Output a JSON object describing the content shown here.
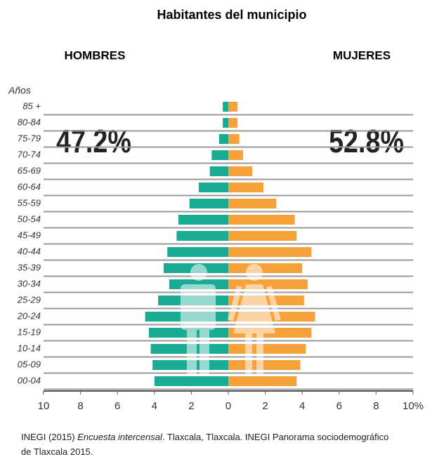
{
  "chart_data": {
    "type": "pyramid",
    "title": "Habitantes del municipio",
    "y_label": "Años",
    "categories": [
      "85 +",
      "80-84",
      "75-79",
      "70-74",
      "65-69",
      "60-64",
      "55-59",
      "50-54",
      "45-49",
      "40-44",
      "35-39",
      "30-34",
      "25-29",
      "20-24",
      "15-19",
      "10-14",
      "05-09",
      "00-04"
    ],
    "series": [
      {
        "name": "HOMBRES",
        "side": "left",
        "color": "#1aab95",
        "total": "47.2%",
        "values": [
          0.3,
          0.3,
          0.5,
          0.9,
          1.0,
          1.6,
          2.1,
          2.7,
          2.8,
          3.3,
          3.5,
          3.2,
          3.8,
          4.5,
          4.3,
          4.2,
          4.1,
          4.0
        ]
      },
      {
        "name": "MUJERES",
        "side": "right",
        "color": "#f7a13a",
        "total": "52.8%",
        "values": [
          0.5,
          0.5,
          0.6,
          0.8,
          1.3,
          1.9,
          2.6,
          3.6,
          3.7,
          4.5,
          4.0,
          4.3,
          4.1,
          4.7,
          4.5,
          4.2,
          3.9,
          3.7
        ]
      }
    ],
    "xlim": [
      -10,
      10
    ],
    "xticks": [
      {
        "value": -10,
        "label": "10"
      },
      {
        "value": -8,
        "label": "8"
      },
      {
        "value": -6,
        "label": "6"
      },
      {
        "value": -4,
        "label": "4"
      },
      {
        "value": -2,
        "label": "2"
      },
      0,
      2,
      4,
      6,
      8,
      {
        "value": 10,
        "label": "10%"
      }
    ],
    "grid": true,
    "source": [
      "INEGI (2015) ",
      "Encuesta intercensal",
      ".  Tlaxcala, Tlaxcala. INEGI  Panorama sociodemográfico de Tlaxcala 2015."
    ]
  }
}
